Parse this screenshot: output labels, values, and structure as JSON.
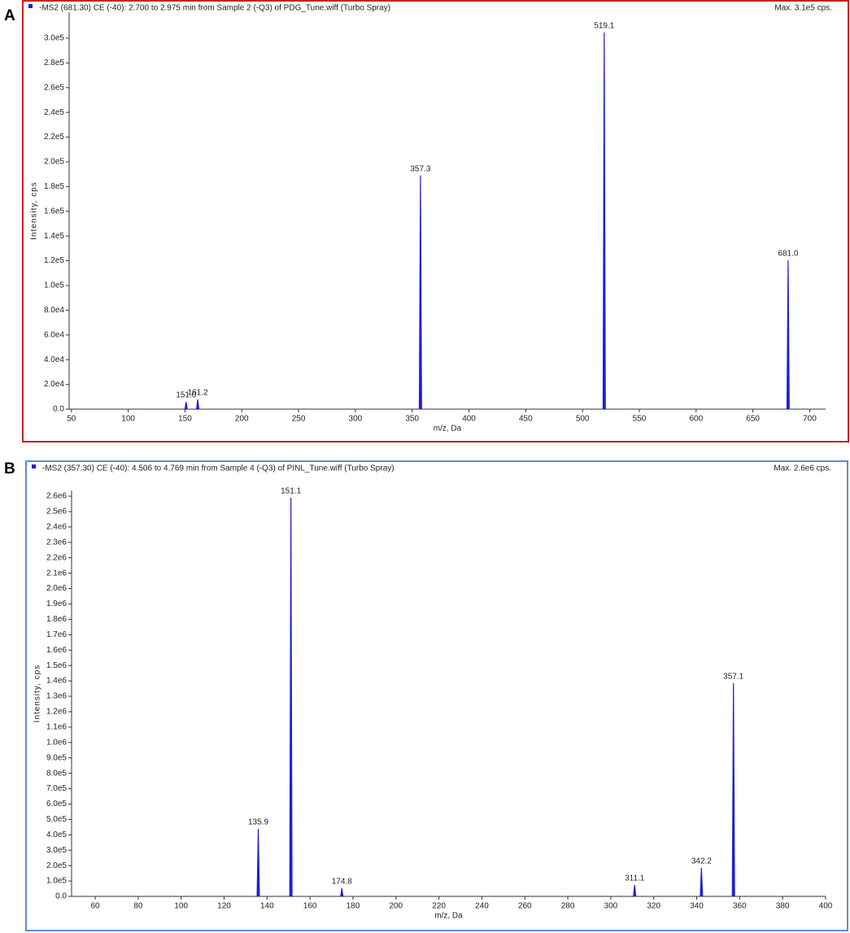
{
  "chart_data": [
    {
      "type": "stick",
      "panel": "A",
      "title": "-MS2 (681.30) CE (-40): 2.700 to 2.975 min from Sample 2 (-Q3) of PDG_Tune.wiff (Turbo Spray)",
      "max_label": "Max. 3.1e5 cps.",
      "x_label": "m/z, Da",
      "y_label": "Intensity, cps",
      "frame_color": "#cc1f1f",
      "color": "#1f1fd6",
      "xlim": [
        48,
        714
      ],
      "ylim": [
        0,
        321000
      ],
      "xticks": [
        50,
        100,
        150,
        200,
        250,
        300,
        350,
        400,
        450,
        500,
        550,
        600,
        650,
        700
      ],
      "yticks": [
        {
          "value": 0,
          "label": "0.0"
        },
        {
          "value": 20000,
          "label": "2.0e4"
        },
        {
          "value": 40000,
          "label": "4.0e4"
        },
        {
          "value": 60000,
          "label": "6.0e4"
        },
        {
          "value": 80000,
          "label": "8.0e4"
        },
        {
          "value": 100000,
          "label": "1.0e5"
        },
        {
          "value": 120000,
          "label": "1.2e5"
        },
        {
          "value": 140000,
          "label": "1.4e5"
        },
        {
          "value": 160000,
          "label": "1.6e5"
        },
        {
          "value": 180000,
          "label": "1.8e5"
        },
        {
          "value": 200000,
          "label": "2.0e5"
        },
        {
          "value": 220000,
          "label": "2.2e5"
        },
        {
          "value": 240000,
          "label": "2.4e5"
        },
        {
          "value": 260000,
          "label": "2.6e5"
        },
        {
          "value": 280000,
          "label": "2.8e5"
        },
        {
          "value": 300000,
          "label": "3.0e5"
        }
      ],
      "x": [
        151.0,
        161.2,
        357.3,
        519.1,
        681.0
      ],
      "x_labels": [
        "151.0",
        "161.2",
        "357.3",
        "519.1",
        "681.0"
      ],
      "values": [
        5900,
        7900,
        189000,
        304600,
        120400
      ]
    },
    {
      "type": "stick",
      "panel": "B",
      "title": "-MS2 (357.30) CE (-40): 4.506 to 4.769 min from Sample 4 (-Q3) of PINL_Tune.wiff (Turbo Spray)",
      "max_label": "Max. 2.6e6 cps.",
      "x_label": "m/z, Da",
      "y_label": "Intensity, cps",
      "frame_color": "#5b8fd0",
      "color": "#1f1fd6",
      "xlim": [
        49,
        400
      ],
      "ylim": [
        0,
        2637000
      ],
      "xticks": [
        60,
        80,
        100,
        120,
        140,
        160,
        180,
        200,
        220,
        240,
        260,
        280,
        300,
        320,
        340,
        360,
        380,
        400
      ],
      "yticks": [
        {
          "value": 0,
          "label": "0.0"
        },
        {
          "value": 100000,
          "label": "1.0e5"
        },
        {
          "value": 200000,
          "label": "2.0e5"
        },
        {
          "value": 300000,
          "label": "3.0e5"
        },
        {
          "value": 400000,
          "label": "4.0e5"
        },
        {
          "value": 500000,
          "label": "5.0e5"
        },
        {
          "value": 600000,
          "label": "6.0e5"
        },
        {
          "value": 700000,
          "label": "7.0e5"
        },
        {
          "value": 800000,
          "label": "8.0e5"
        },
        {
          "value": 900000,
          "label": "9.0e5"
        },
        {
          "value": 1000000,
          "label": "1.0e6"
        },
        {
          "value": 1100000,
          "label": "1.1e6"
        },
        {
          "value": 1200000,
          "label": "1.2e6"
        },
        {
          "value": 1300000,
          "label": "1.3e6"
        },
        {
          "value": 1400000,
          "label": "1.4e6"
        },
        {
          "value": 1500000,
          "label": "1.5e6"
        },
        {
          "value": 1600000,
          "label": "1.6e6"
        },
        {
          "value": 1700000,
          "label": "1.7e6"
        },
        {
          "value": 1800000,
          "label": "1.8e6"
        },
        {
          "value": 1900000,
          "label": "1.9e6"
        },
        {
          "value": 2000000,
          "label": "2.0e6"
        },
        {
          "value": 2100000,
          "label": "2.1e6"
        },
        {
          "value": 2200000,
          "label": "2.2e6"
        },
        {
          "value": 2300000,
          "label": "2.3e6"
        },
        {
          "value": 2400000,
          "label": "2.4e6"
        },
        {
          "value": 2500000,
          "label": "2.5e6"
        },
        {
          "value": 2600000,
          "label": "2.6e6"
        }
      ],
      "x": [
        135.9,
        151.1,
        174.8,
        311.1,
        342.2,
        357.1
      ],
      "x_labels": [
        "135.9",
        "151.1",
        "174.8",
        "311.1",
        "342.2",
        "357.1"
      ],
      "values": [
        438700,
        2590000,
        52900,
        74000,
        185000,
        1385000
      ]
    }
  ]
}
